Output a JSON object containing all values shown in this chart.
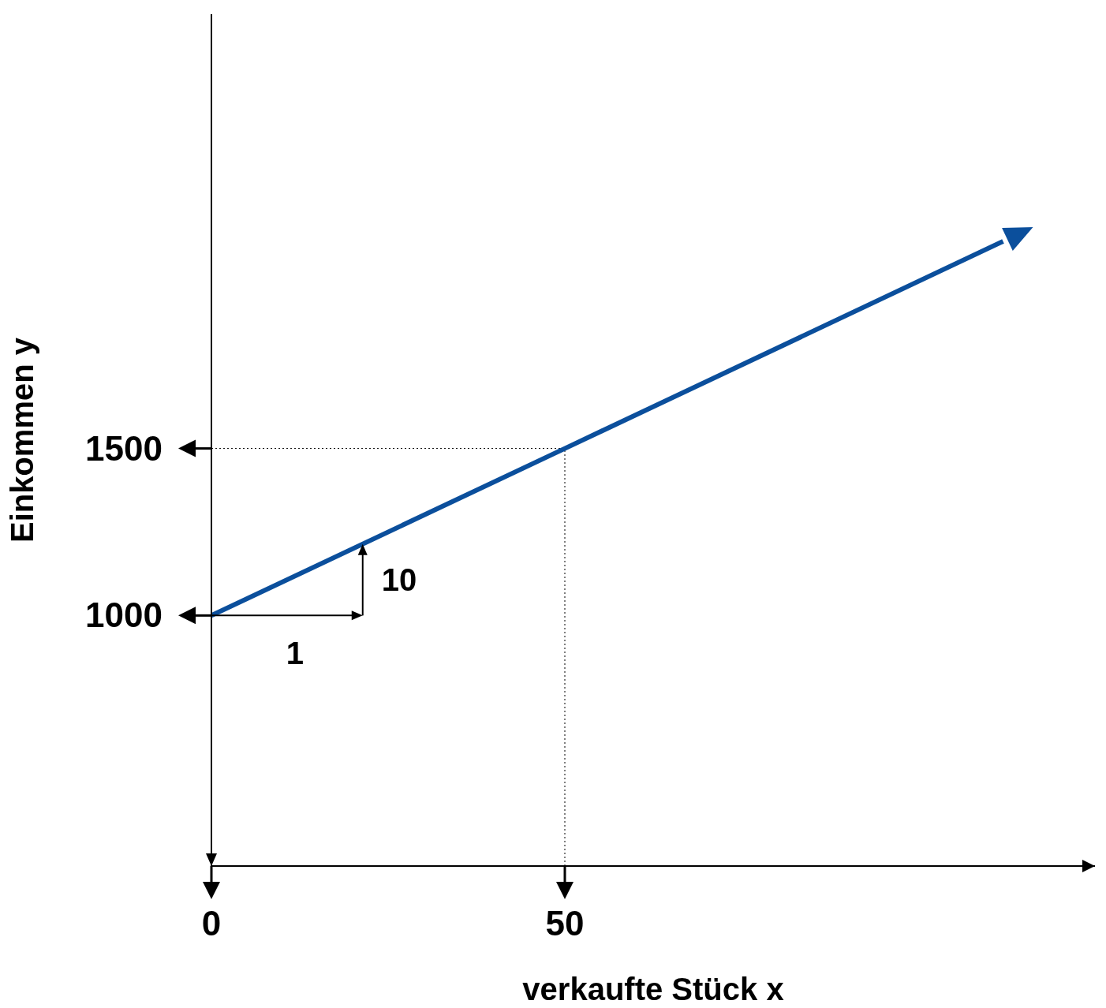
{
  "chart_data": {
    "type": "line",
    "xlabel": "verkaufte Stück x",
    "ylabel": "Einkommen y",
    "x": [
      0,
      50,
      112
    ],
    "series": [
      {
        "color": "#0b4f9c",
        "values": [
          1000,
          1500,
          2120
        ]
      }
    ],
    "xlim": [
      0,
      125
    ],
    "ylim": [
      250,
      2800
    ],
    "xticks": [
      0,
      50
    ],
    "yticks": [
      1000,
      1500
    ],
    "ref_lines": [
      {
        "axis": "x",
        "value": 50,
        "line_style": "dotted"
      },
      {
        "axis": "y",
        "value": 1500,
        "line_style": "dotted"
      }
    ],
    "annotations": [
      "1",
      {
        "text": "10",
        "x": 21.4,
        "y": 1214
      }
    ],
    "grid": false,
    "legend": false,
    "marker": "none",
    "line_style": "solid"
  }
}
